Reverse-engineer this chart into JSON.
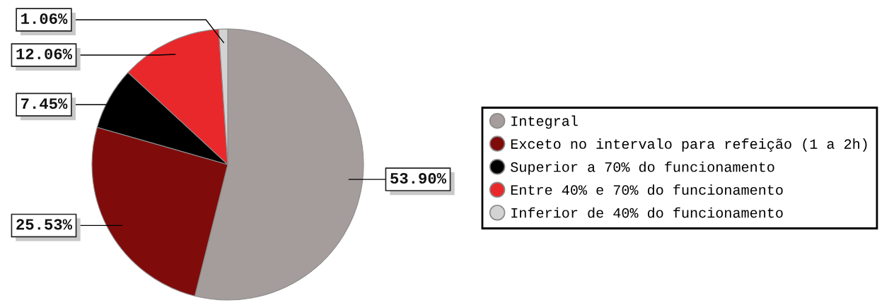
{
  "chart_data": {
    "type": "pie",
    "categories": [
      "Integral",
      "Exceto no intervalo para refeição (1 a 2h)",
      "Superior a 70% do funcionamento",
      "Entre 40% e 70% do funcionamento",
      "Inferior de 40% do funcionamento"
    ],
    "values": [
      53.9,
      25.53,
      7.45,
      12.06,
      1.06
    ],
    "colors": [
      "#a59c9c",
      "#800b0b",
      "#000000",
      "#e9282b",
      "#d3d3d3"
    ],
    "value_labels": [
      "53.90%",
      "25.53%",
      "7.45%",
      "12.06%",
      "1.06%"
    ],
    "legend": "right"
  }
}
